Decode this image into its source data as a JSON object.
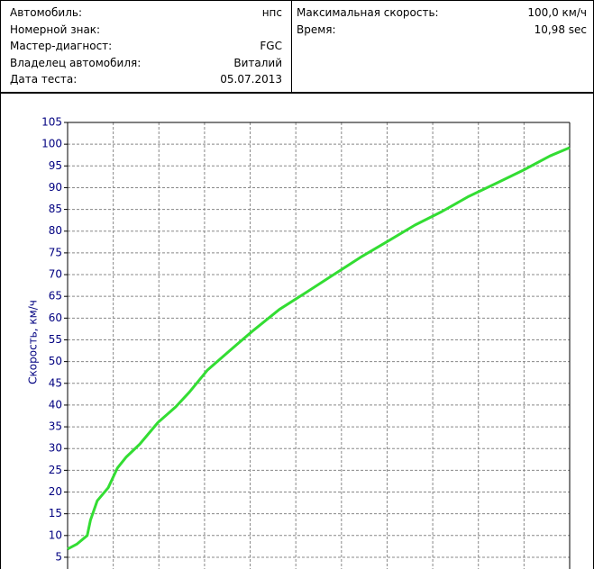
{
  "info": {
    "left": [
      {
        "label": "Автомобиль:",
        "value": "нпс"
      },
      {
        "label": "Номерной знак:"
      },
      {
        "label": "Мастер-диагност:",
        "value": "FGC"
      },
      {
        "label": "Владелец автомобиля:",
        "value": "Виталий"
      },
      {
        "label": "Дата теста:",
        "value": "05.07.2013"
      }
    ],
    "right": [
      {
        "label": "Максимальная скорость:",
        "value": "100,0 км/ч"
      },
      {
        "label": "Время:",
        "value": "10,98 sec"
      }
    ]
  },
  "chart_data": {
    "type": "line",
    "ylabel": "Скорость, км/ч",
    "x": [
      0,
      0.2,
      0.43,
      0.5,
      0.65,
      0.89,
      1.09,
      1.28,
      1.58,
      1.98,
      2.37,
      2.67,
      3.06,
      3.66,
      4.05,
      4.64,
      5.24,
      5.83,
      6.42,
      7.02,
      7.61,
      8.2,
      8.79,
      9.39,
      9.98,
      10.57,
      11
    ],
    "values": [
      6.9,
      8,
      10,
      13.5,
      18,
      21,
      25.5,
      28,
      31,
      36,
      39.6,
      43,
      48,
      53.5,
      57,
      62,
      66,
      70,
      74,
      77.7,
      81.4,
      84.5,
      88,
      91,
      94,
      97.3,
      99.2
    ],
    "color": "#33dd33",
    "xlim": [
      0,
      11
    ],
    "xticks": [
      0,
      1,
      2,
      3,
      4,
      5,
      6,
      7,
      8,
      9,
      10,
      11
    ],
    "xtick_labels": false,
    "ylim": [
      2.3,
      105
    ],
    "yticks": [
      5,
      10,
      15,
      20,
      25,
      30,
      35,
      40,
      45,
      50,
      55,
      60,
      65,
      70,
      75,
      80,
      85,
      90,
      95,
      100,
      105
    ],
    "grid": true
  }
}
